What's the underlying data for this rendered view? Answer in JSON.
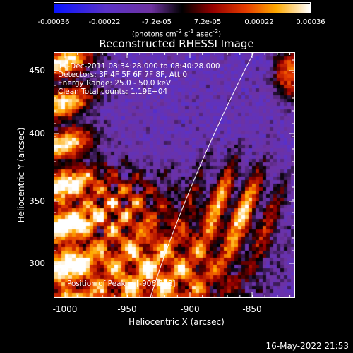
{
  "colorbar": {
    "ticks": [
      "-0.00036",
      "-0.00022",
      "-7.2e-05",
      "7.2e-05",
      "0.00022",
      "0.00036"
    ],
    "units_html": "(photons cm<sup>-2</sup> s<sup>-1</sup> asec<sup>-2</sup>)"
  },
  "title": "Reconstructed RHESSI Image",
  "info": {
    "time": "11-Dec-2011 08:34:28.000 to 08:40:28.000",
    "detectors": "Detectors: 3F 4F 5F 6F 7F 8F, Att 0",
    "energy": "Energy Range: 25.0 - 50.0 keV",
    "clean": "Clean    Total counts: 1.19E+04",
    "peak": "Position of Peak = [-906,278]"
  },
  "axes": {
    "xlabel": "Heliocentric X (arcsec)",
    "ylabel": "Heliocentric Y (arcsec)",
    "xlim": [
      -1012,
      -818
    ],
    "ylim": [
      270,
      467
    ],
    "xticks": [
      "-1000",
      "-950",
      "-900",
      "-850"
    ],
    "yticks": [
      "300",
      "350",
      "400",
      "450"
    ]
  },
  "footer": {
    "date": "16-May-2022 21:53"
  },
  "colors": {
    "limb": "#ffffff",
    "axis": "#ffffff"
  }
}
